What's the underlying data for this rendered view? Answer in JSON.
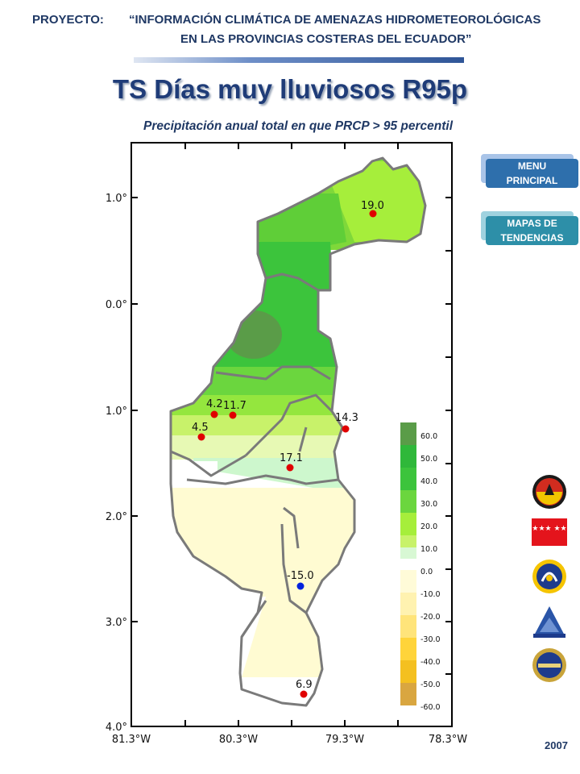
{
  "header": {
    "label": "PROYECTO:",
    "line1": "“INFORMACIÓN CLIMÁTICA DE AMENAZAS HIDROMETEOROLÓGICAS",
    "line2": "EN    LAS PROVINCIAS COSTERAS DEL ECUADOR”"
  },
  "title": "TS Días muy lluviosos R95p",
  "subtitle": "Precipitación anual total en que PRCP > 95 percentil",
  "nav": {
    "menu_label": "MENU PRINCIPAL",
    "mapas_label": "MAPAS DE TENDENCIAS"
  },
  "year": "2007",
  "map": {
    "y_labels": [
      "1.0°",
      "0.0°",
      "1.0°",
      "2.0°",
      "3.0°",
      "4.0°"
    ],
    "x_labels": [
      "81.3°W",
      "80.3°W",
      "79.3°W",
      "78.3°W"
    ],
    "stations": [
      {
        "value": "19.0",
        "color": "#e00000"
      },
      {
        "value": "4.2",
        "color": "#e00000"
      },
      {
        "value": "11.7",
        "color": "#e00000"
      },
      {
        "value": "14.3",
        "color": "#e00000"
      },
      {
        "value": "4.5",
        "color": "#e00000"
      },
      {
        "value": "17.1",
        "color": "#e00000"
      },
      {
        "value": "-15.0",
        "color": "#0022dd"
      },
      {
        "value": "6.9",
        "color": "#e00000"
      }
    ],
    "legend_positive": [
      "60.0",
      "50.0",
      "40.0",
      "30.0",
      "20.0",
      "10.0"
    ],
    "legend_negative": [
      "0.0",
      "-10.0",
      "-20.0",
      "-30.0",
      "-40.0",
      "-50.0",
      "-60.0"
    ]
  },
  "logos": [
    "army-seal",
    "stars-flag",
    "navy-seal",
    "inamhi-logo",
    "institute-seal"
  ],
  "logo_flag_text": "★★★★ ★★★"
}
